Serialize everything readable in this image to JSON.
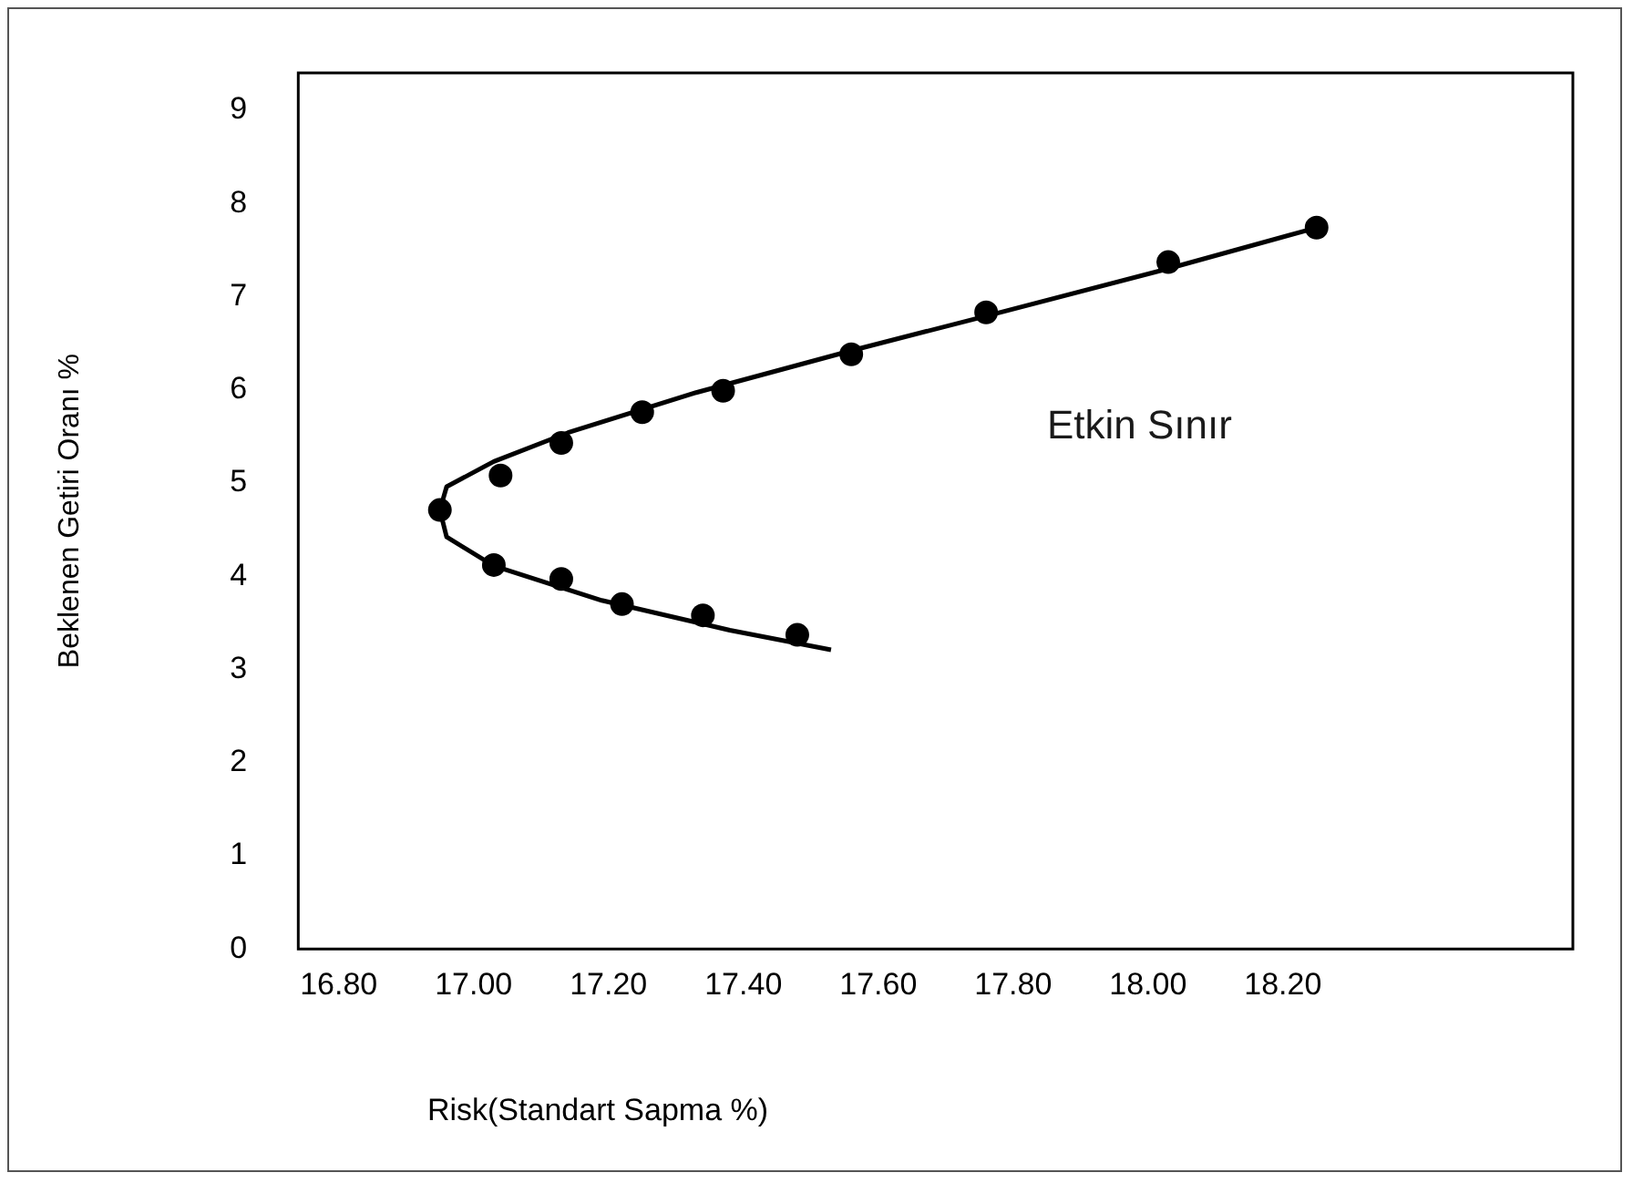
{
  "chart_data": {
    "type": "scatter",
    "xlabel": "Risk(Standart Sapma %)",
    "ylabel": "Beklenen Getiri Oranı %",
    "xlim": [
      16.74,
      18.63
    ],
    "xticks": [
      {
        "value": 16.8,
        "label": "16.80"
      },
      {
        "value": 17.0,
        "label": "17.00"
      },
      {
        "value": 17.2,
        "label": "17.20"
      },
      {
        "value": 17.4,
        "label": "17.40"
      },
      {
        "value": 17.6,
        "label": "17.60"
      },
      {
        "value": 17.8,
        "label": "17.80"
      },
      {
        "value": 18.0,
        "label": "18.00"
      },
      {
        "value": 18.2,
        "label": "18.20"
      }
    ],
    "ylim": [
      0,
      9.4
    ],
    "yticks": [
      0,
      1,
      2,
      3,
      4,
      5,
      6,
      7,
      8,
      9
    ],
    "grid": false,
    "legend": false,
    "annotations": [
      "Etkin Sınır"
    ],
    "series": [
      {
        "color": "#000000",
        "marker": "circle",
        "x": [
          16.95,
          17.03,
          17.04,
          17.13,
          17.13,
          17.22,
          17.25,
          17.34,
          17.37,
          17.48,
          17.56,
          17.76,
          18.03,
          18.25
        ],
        "values": [
          4.71,
          4.12,
          5.08,
          5.43,
          3.97,
          3.7,
          5.76,
          3.58,
          5.99,
          3.37,
          6.38,
          6.83,
          7.37,
          7.74
        ]
      },
      {
        "type": "line",
        "color": "#000000",
        "marker": "none",
        "line_style": "solid",
        "x": [
          17.53,
          17.38,
          17.19,
          17.03,
          16.96,
          16.95,
          16.96,
          17.03,
          17.14,
          17.33,
          17.56,
          17.77,
          18.03,
          18.24
        ],
        "values": [
          3.21,
          3.42,
          3.74,
          4.11,
          4.42,
          4.71,
          4.96,
          5.23,
          5.54,
          5.97,
          6.42,
          6.81,
          7.3,
          7.72
        ]
      }
    ]
  }
}
